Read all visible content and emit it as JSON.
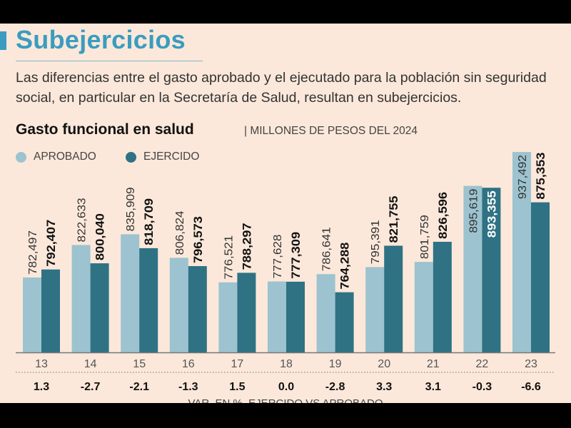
{
  "header": {
    "title": "Subejercicios",
    "description": "Las diferencias entre el gasto aprobado y el ejecutado para la población sin seguridad social, en particular en la Secretaría de Salud, resultan en subejercicios."
  },
  "chart_data": {
    "type": "bar",
    "title": "Gasto funcional en salud",
    "subtitle": "| MILLONES DE PESOS DEL 2024",
    "categories": [
      "13",
      "14",
      "15",
      "16",
      "17",
      "18",
      "19",
      "20",
      "21",
      "22",
      "23"
    ],
    "series": [
      {
        "name": "APROBADO",
        "color": "#9cc3cf",
        "values": [
          782497,
          822633,
          835909,
          806824,
          776521,
          777628,
          786641,
          795391,
          801759,
          895619,
          937492
        ],
        "labels": [
          "782,497",
          "822,633",
          "835,909",
          "806,824",
          "776,521",
          "777,628",
          "786,641",
          "795,391",
          "801,759",
          "895,619",
          "937,492"
        ]
      },
      {
        "name": "EJERCIDO",
        "color": "#2e7284",
        "values": [
          792407,
          800040,
          818709,
          796573,
          788297,
          777309,
          764288,
          821755,
          826596,
          893355,
          875353
        ],
        "labels": [
          "792,407",
          "800,040",
          "818,709",
          "796,573",
          "788,297",
          "777,309",
          "764,288",
          "821,755",
          "826,596",
          "893,355",
          "875,353"
        ]
      }
    ],
    "variation": {
      "label": "VAR. EN %, EJERCIDO VS APROBADO",
      "values": [
        "1.3",
        "-2.7",
        "-2.1",
        "-1.3",
        "1.5",
        "0.0",
        "-2.8",
        "3.3",
        "3.1",
        "-0.3",
        "-6.6"
      ]
    },
    "legend": "top-left",
    "grid": false
  }
}
